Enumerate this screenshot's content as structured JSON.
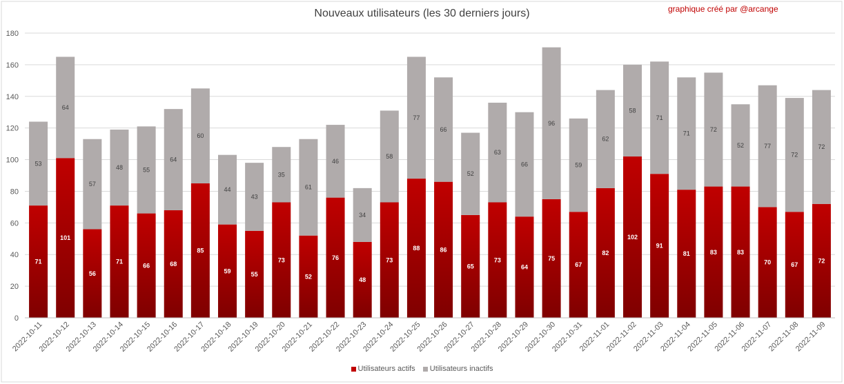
{
  "chart_data": {
    "type": "bar",
    "stacked": true,
    "title": "Nouveaux utilisateurs  (les 30 derniers  jours)",
    "annotation": "graphique créé par @arcange",
    "categories": [
      "2022-10-11",
      "2022-10-12",
      "2022-10-13",
      "2022-10-14",
      "2022-10-15",
      "2022-10-16",
      "2022-10-17",
      "2022-10-18",
      "2022-10-19",
      "2022-10-20",
      "2022-10-21",
      "2022-10-22",
      "2022-10-23",
      "2022-10-24",
      "2022-10-25",
      "2022-10-26",
      "2022-10-27",
      "2022-10-28",
      "2022-10-29",
      "2022-10-30",
      "2022-10-31",
      "2022-11-01",
      "2022-11-02",
      "2022-11-03",
      "2022-11-04",
      "2022-11-05",
      "2022-11-06",
      "2022-11-07",
      "2022-11-08",
      "2022-11-09"
    ],
    "series": [
      {
        "name": "Utilisateurs actifs",
        "color": "#c00000",
        "values": [
          71,
          101,
          56,
          71,
          66,
          68,
          85,
          59,
          55,
          73,
          52,
          76,
          48,
          73,
          88,
          86,
          65,
          73,
          64,
          75,
          67,
          82,
          102,
          91,
          81,
          83,
          83,
          70,
          67,
          72
        ]
      },
      {
        "name": "Utilisateurs inactifs",
        "color": "#b0abab",
        "values": [
          53,
          64,
          57,
          48,
          55,
          64,
          60,
          44,
          43,
          35,
          61,
          46,
          34,
          58,
          77,
          66,
          52,
          63,
          66,
          96,
          59,
          62,
          58,
          71,
          71,
          72,
          52,
          77,
          72,
          72
        ]
      }
    ],
    "ylim": [
      0,
      180
    ],
    "yticks": [
      0,
      20,
      40,
      60,
      80,
      100,
      120,
      140,
      160,
      180
    ],
    "grid": true,
    "legend_position": "bottom"
  }
}
